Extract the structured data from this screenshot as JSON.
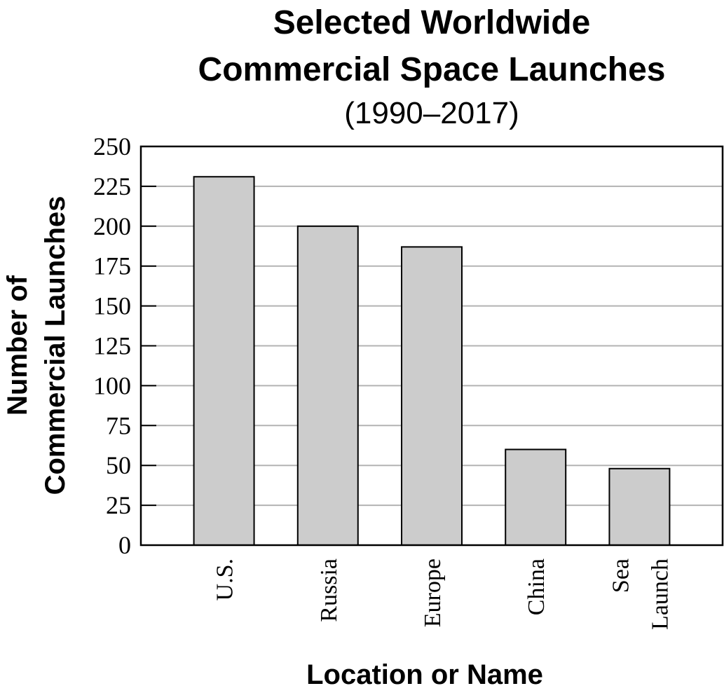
{
  "chart_data": {
    "type": "bar",
    "title_line1": "Selected Worldwide",
    "title_line2": "Commercial Space Launches",
    "subtitle": "(1990–2017)",
    "ylabel_line1": "Number of",
    "ylabel_line2": "Commercial Launches",
    "xlabel": "Location or Name",
    "categories": [
      {
        "lines": [
          "U.S."
        ]
      },
      {
        "lines": [
          "Russia"
        ]
      },
      {
        "lines": [
          "Europe"
        ]
      },
      {
        "lines": [
          "China"
        ]
      },
      {
        "lines": [
          "Sea",
          "Launch"
        ]
      }
    ],
    "values": [
      231,
      200,
      187,
      60,
      48
    ],
    "ylim": [
      0,
      250
    ],
    "yticks": [
      "0",
      "25",
      "50",
      "75",
      "100",
      "125",
      "150",
      "175",
      "200",
      "225",
      "250"
    ],
    "grid": true,
    "colors": {
      "bar": "#cccccc",
      "bar_stroke": "#000000",
      "grid": "#b3b3b3",
      "axis": "#000000"
    }
  }
}
